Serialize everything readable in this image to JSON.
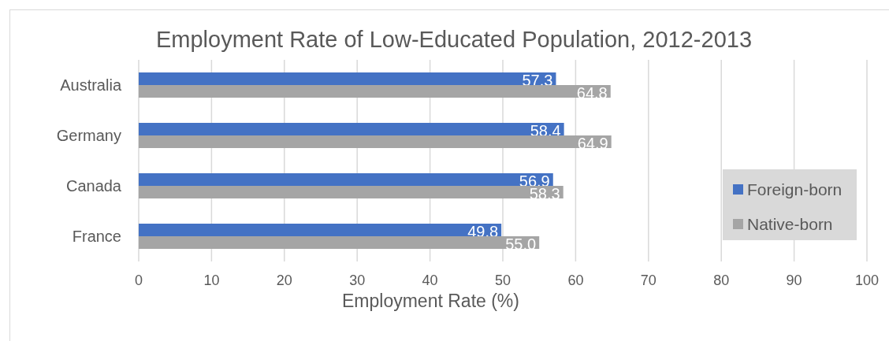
{
  "chart_data": {
    "type": "bar",
    "orientation": "horizontal",
    "title": "Employment Rate of Low-Educated Population, 2012-2013",
    "xlabel": "Employment Rate (%)",
    "categories": [
      "Australia",
      "Germany",
      "Canada",
      "France"
    ],
    "series": [
      {
        "name": "Foreign-born",
        "color": "#4472c4",
        "values": [
          57.3,
          58.4,
          56.9,
          49.8
        ],
        "value_labels": [
          "57.3",
          "58.4",
          "56.9",
          "49.8"
        ]
      },
      {
        "name": "Native-born",
        "color": "#a5a5a5",
        "values": [
          64.8,
          64.9,
          58.3,
          55.0
        ],
        "value_labels": [
          "64.8",
          "64.9",
          "58.3",
          "55.0"
        ]
      }
    ],
    "xlim": [
      0,
      100
    ],
    "xticks": [
      0,
      10,
      20,
      30,
      40,
      50,
      60,
      70,
      80,
      90,
      100
    ],
    "grid": "x",
    "legend": "bottom right"
  }
}
